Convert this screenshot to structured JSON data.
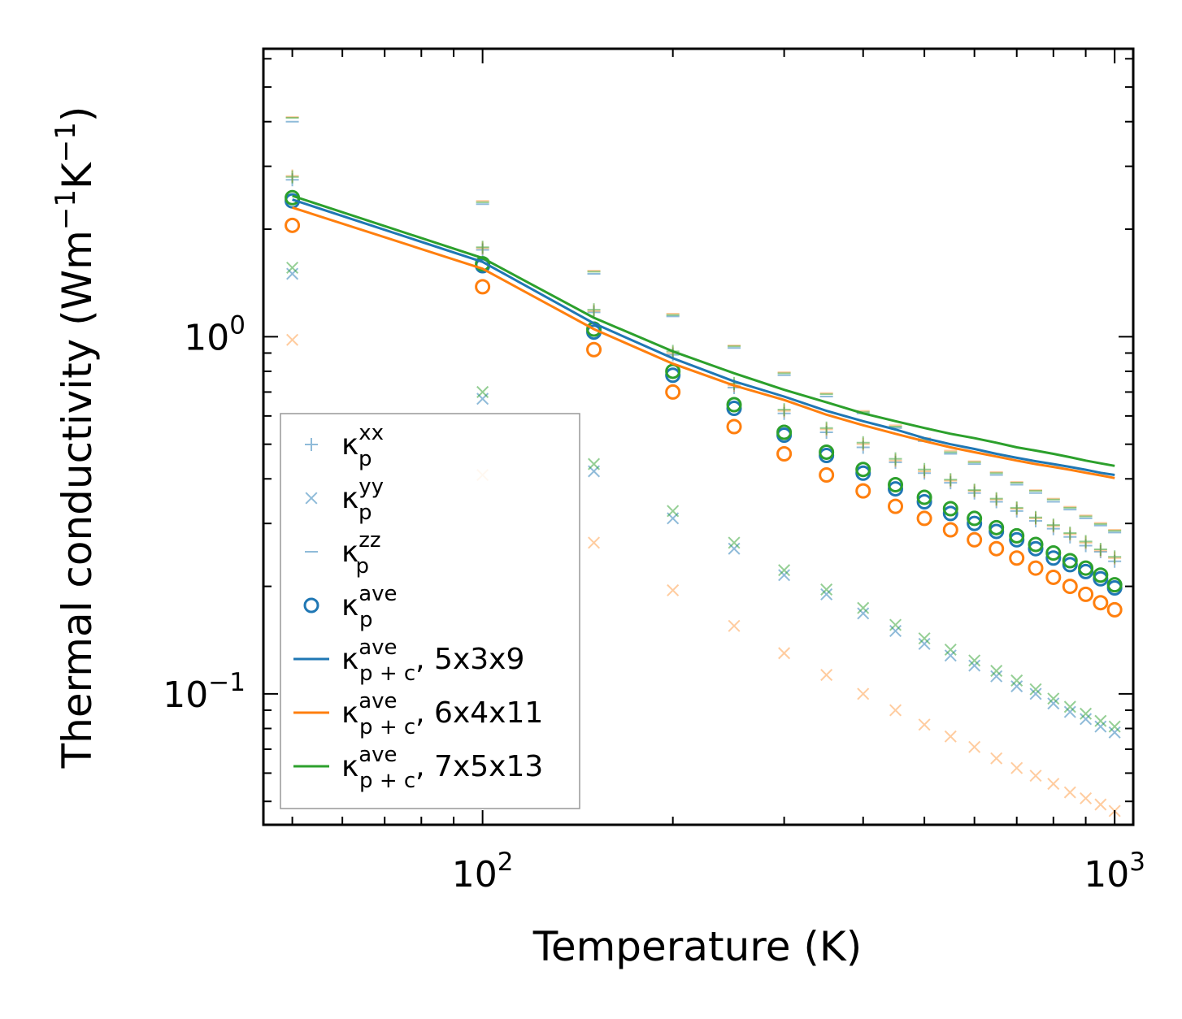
{
  "chart_data": {
    "type": "scatter",
    "title": "",
    "xlabel": "Temperature (K)",
    "ylabel_main": "Thermal conductivity (Wm",
    "ylabel_sup1": "−1",
    "ylabel_mid": "K",
    "ylabel_sup2": "−1",
    "ylabel_end": ")",
    "xscale": "log",
    "yscale": "log",
    "xlim": [
      45,
      1070
    ],
    "ylim": [
      0.043,
      6.4
    ],
    "x_ticks": [
      {
        "value": 100,
        "base": "10",
        "exp": "2"
      },
      {
        "value": 1000,
        "base": "10",
        "exp": "3"
      }
    ],
    "y_ticks": [
      {
        "value": 0.1,
        "base": "10",
        "exp": "−1"
      },
      {
        "value": 1,
        "base": "10",
        "exp": "0"
      }
    ],
    "colors": {
      "blue": "#1f77b4",
      "orange": "#ff7f0e",
      "green": "#2ca02c"
    },
    "x": [
      50,
      100,
      150,
      200,
      250,
      300,
      350,
      400,
      450,
      500,
      550,
      600,
      650,
      700,
      750,
      800,
      850,
      900,
      950,
      1000
    ],
    "series": [
      {
        "name": "kxx_5x3x9",
        "marker": "plus",
        "color": "#1f77b4",
        "alpha": 0.5,
        "values": [
          2.75,
          1.75,
          1.17,
          0.89,
          0.72,
          0.61,
          0.54,
          0.49,
          0.445,
          0.415,
          0.39,
          0.365,
          0.345,
          0.325,
          0.305,
          0.29,
          0.275,
          0.26,
          0.25,
          0.235
        ]
      },
      {
        "name": "kxx_6x4x11",
        "marker": "plus",
        "color": "#ff7f0e",
        "alpha": 0.4,
        "values": [
          2.82,
          1.77,
          1.18,
          0.9,
          0.73,
          0.62,
          0.55,
          0.5,
          0.45,
          0.42,
          0.395,
          0.37,
          0.35,
          0.33,
          0.31,
          0.295,
          0.28,
          0.265,
          0.252,
          0.24
        ]
      },
      {
        "name": "kxx_7x5x13",
        "marker": "plus",
        "color": "#2ca02c",
        "alpha": 0.5,
        "values": [
          2.8,
          1.78,
          1.19,
          0.91,
          0.74,
          0.625,
          0.555,
          0.505,
          0.455,
          0.425,
          0.398,
          0.372,
          0.352,
          0.332,
          0.312,
          0.297,
          0.282,
          0.267,
          0.254,
          0.242
        ]
      },
      {
        "name": "kyy_5x3x9",
        "marker": "x",
        "color": "#1f77b4",
        "alpha": 0.5,
        "values": [
          1.5,
          0.67,
          0.42,
          0.31,
          0.255,
          0.215,
          0.19,
          0.168,
          0.15,
          0.138,
          0.128,
          0.12,
          0.112,
          0.105,
          0.1,
          0.094,
          0.089,
          0.085,
          0.081,
          0.078
        ]
      },
      {
        "name": "kyy_6x4x11",
        "marker": "x",
        "color": "#ff7f0e",
        "alpha": 0.4,
        "values": [
          0.98,
          0.41,
          0.265,
          0.195,
          0.155,
          0.13,
          0.113,
          0.1,
          0.09,
          0.082,
          0.076,
          0.071,
          0.066,
          0.062,
          0.059,
          0.056,
          0.053,
          0.051,
          0.049,
          0.047
        ]
      },
      {
        "name": "kyy_7x5x13",
        "marker": "x",
        "color": "#2ca02c",
        "alpha": 0.5,
        "values": [
          1.56,
          0.7,
          0.44,
          0.325,
          0.265,
          0.222,
          0.196,
          0.174,
          0.156,
          0.143,
          0.133,
          0.124,
          0.116,
          0.109,
          0.103,
          0.097,
          0.092,
          0.088,
          0.084,
          0.081
        ]
      },
      {
        "name": "kzz_5x3x9",
        "marker": "dash",
        "color": "#1f77b4",
        "alpha": 0.5,
        "values": [
          4.0,
          2.35,
          1.5,
          1.14,
          0.93,
          0.78,
          0.68,
          0.61,
          0.555,
          0.51,
          0.47,
          0.44,
          0.41,
          0.385,
          0.365,
          0.345,
          0.328,
          0.31,
          0.296,
          0.283
        ]
      },
      {
        "name": "kzz_6x4x11",
        "marker": "dash",
        "color": "#ff7f0e",
        "alpha": 0.4,
        "values": [
          4.12,
          2.4,
          1.53,
          1.16,
          0.945,
          0.795,
          0.695,
          0.62,
          0.565,
          0.52,
          0.48,
          0.448,
          0.418,
          0.392,
          0.372,
          0.352,
          0.334,
          0.316,
          0.301,
          0.288
        ]
      },
      {
        "name": "kzz_7x5x13",
        "marker": "dash",
        "color": "#2ca02c",
        "alpha": 0.5,
        "values": [
          4.1,
          2.38,
          1.52,
          1.15,
          0.94,
          0.79,
          0.69,
          0.615,
          0.56,
          0.515,
          0.475,
          0.445,
          0.415,
          0.39,
          0.37,
          0.35,
          0.332,
          0.314,
          0.299,
          0.286
        ]
      },
      {
        "name": "kave_5x3x9",
        "marker": "circle",
        "color": "#1f77b4",
        "alpha": 1,
        "values": [
          2.4,
          1.58,
          1.03,
          0.78,
          0.63,
          0.53,
          0.465,
          0.415,
          0.375,
          0.345,
          0.32,
          0.3,
          0.285,
          0.27,
          0.255,
          0.24,
          0.23,
          0.22,
          0.21,
          0.198
        ]
      },
      {
        "name": "kave_6x4x11",
        "marker": "circle",
        "color": "#ff7f0e",
        "alpha": 1,
        "values": [
          2.05,
          1.38,
          0.92,
          0.7,
          0.56,
          0.47,
          0.41,
          0.37,
          0.335,
          0.31,
          0.288,
          0.27,
          0.255,
          0.24,
          0.225,
          0.212,
          0.2,
          0.19,
          0.18,
          0.172
        ]
      },
      {
        "name": "kave_7x5x13",
        "marker": "circle",
        "color": "#2ca02c",
        "alpha": 1,
        "values": [
          2.45,
          1.6,
          1.05,
          0.8,
          0.645,
          0.54,
          0.475,
          0.425,
          0.385,
          0.355,
          0.33,
          0.31,
          0.292,
          0.277,
          0.262,
          0.248,
          0.236,
          0.225,
          0.215,
          0.202
        ]
      },
      {
        "name": "kpc_5x3x9",
        "marker": "line",
        "color": "#1f77b4",
        "alpha": 1,
        "values": [
          2.42,
          1.62,
          1.09,
          0.87,
          0.75,
          0.68,
          0.62,
          0.58,
          0.55,
          0.52,
          0.5,
          0.485,
          0.47,
          0.458,
          0.448,
          0.44,
          0.432,
          0.424,
          0.416,
          0.41
        ]
      },
      {
        "name": "kpc_6x4x11",
        "marker": "line",
        "color": "#ff7f0e",
        "alpha": 1,
        "values": [
          2.3,
          1.55,
          1.05,
          0.84,
          0.73,
          0.665,
          0.605,
          0.565,
          0.535,
          0.51,
          0.49,
          0.475,
          0.462,
          0.45,
          0.44,
          0.432,
          0.424,
          0.416,
          0.409,
          0.402
        ]
      },
      {
        "name": "kpc_7x5x13",
        "marker": "line",
        "color": "#2ca02c",
        "alpha": 1,
        "values": [
          2.48,
          1.66,
          1.13,
          0.91,
          0.79,
          0.71,
          0.655,
          0.61,
          0.58,
          0.555,
          0.535,
          0.52,
          0.505,
          0.49,
          0.48,
          0.47,
          0.46,
          0.45,
          0.442,
          0.435
        ]
      }
    ],
    "legend": {
      "location": "lower-left",
      "entries": [
        {
          "marker": "plus",
          "color": "#1f77b4",
          "alpha": 0.5,
          "sym": "κ",
          "sub": "p",
          "sup": "xx",
          "suffix": ""
        },
        {
          "marker": "x",
          "color": "#1f77b4",
          "alpha": 0.5,
          "sym": "κ",
          "sub": "p",
          "sup": "yy",
          "suffix": ""
        },
        {
          "marker": "dash",
          "color": "#1f77b4",
          "alpha": 0.5,
          "sym": "κ",
          "sub": "p",
          "sup": "zz",
          "suffix": ""
        },
        {
          "marker": "circle",
          "color": "#1f77b4",
          "alpha": 1,
          "sym": "κ",
          "sub": "p",
          "sup": "ave",
          "suffix": ""
        },
        {
          "marker": "line",
          "color": "#1f77b4",
          "alpha": 1,
          "sym": "κ",
          "sub": "p + c",
          "sup": "ave",
          "suffix": ", 5x3x9"
        },
        {
          "marker": "line",
          "color": "#ff7f0e",
          "alpha": 1,
          "sym": "κ",
          "sub": "p + c",
          "sup": "ave",
          "suffix": ", 6x4x11"
        },
        {
          "marker": "line",
          "color": "#2ca02c",
          "alpha": 1,
          "sym": "κ",
          "sub": "p + c",
          "sup": "ave",
          "suffix": ", 7x5x13"
        }
      ]
    }
  }
}
